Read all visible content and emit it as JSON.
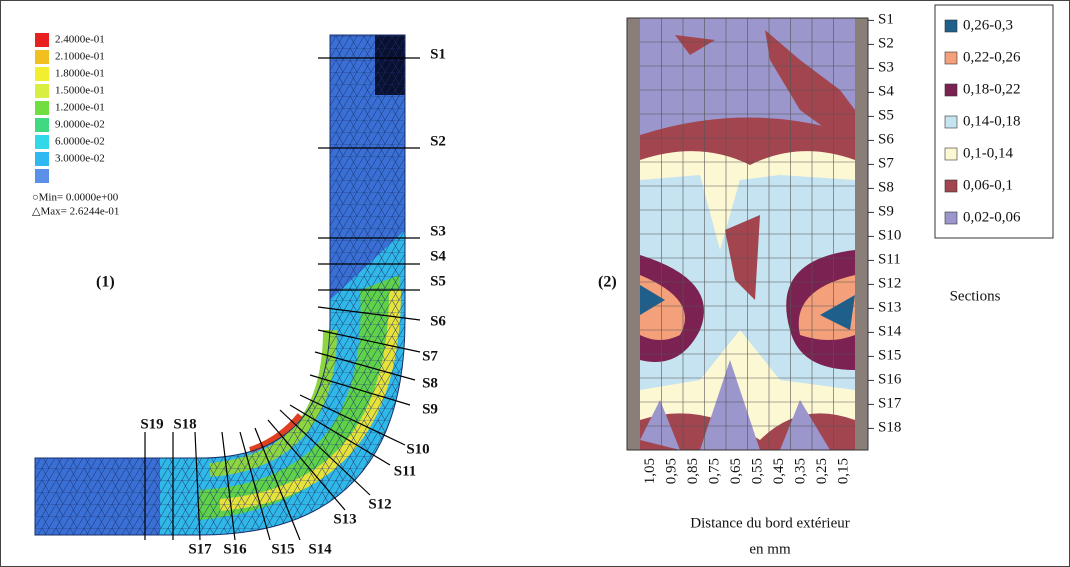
{
  "panel1": {
    "label": "(1)",
    "colorbar": [
      "2.4000e-01",
      "2.1000e-01",
      "1.8000e-01",
      "1.5000e-01",
      "1.2000e-01",
      "9.0000e-02",
      "6.0000e-02",
      "3.0000e-02"
    ],
    "min": "○Min= 0.0000e+00",
    "max": "△Max= 2.6244e-01",
    "sections": [
      "S1",
      "S2",
      "S3",
      "S4",
      "S5",
      "S6",
      "S7",
      "S8",
      "S9",
      "S10",
      "S11",
      "S12",
      "S13",
      "S14",
      "S15",
      "S16",
      "S17",
      "S18",
      "S19"
    ]
  },
  "panel2": {
    "label": "(2)",
    "legend": [
      "0,26-0,3",
      "0,22-0,26",
      "0,18-0,22",
      "0,14-0,18",
      "0,1-0,14",
      "0,06-0,1",
      "0,02-0,06"
    ],
    "y_labels": [
      "S1",
      "S2",
      "S3",
      "S4",
      "S5",
      "S6",
      "S7",
      "S8",
      "S9",
      "S10",
      "S11",
      "S12",
      "S13",
      "S14",
      "S15",
      "S16",
      "S17",
      "S18"
    ],
    "x_labels": [
      "1,05",
      "0,95",
      "0,85",
      "0,75",
      "0,65",
      "0,55",
      "0,45",
      "0,35",
      "0,25",
      "0,15"
    ],
    "x_title": [
      "Distance du bord extérieur",
      "en mm"
    ],
    "side_label": "Sections"
  }
}
